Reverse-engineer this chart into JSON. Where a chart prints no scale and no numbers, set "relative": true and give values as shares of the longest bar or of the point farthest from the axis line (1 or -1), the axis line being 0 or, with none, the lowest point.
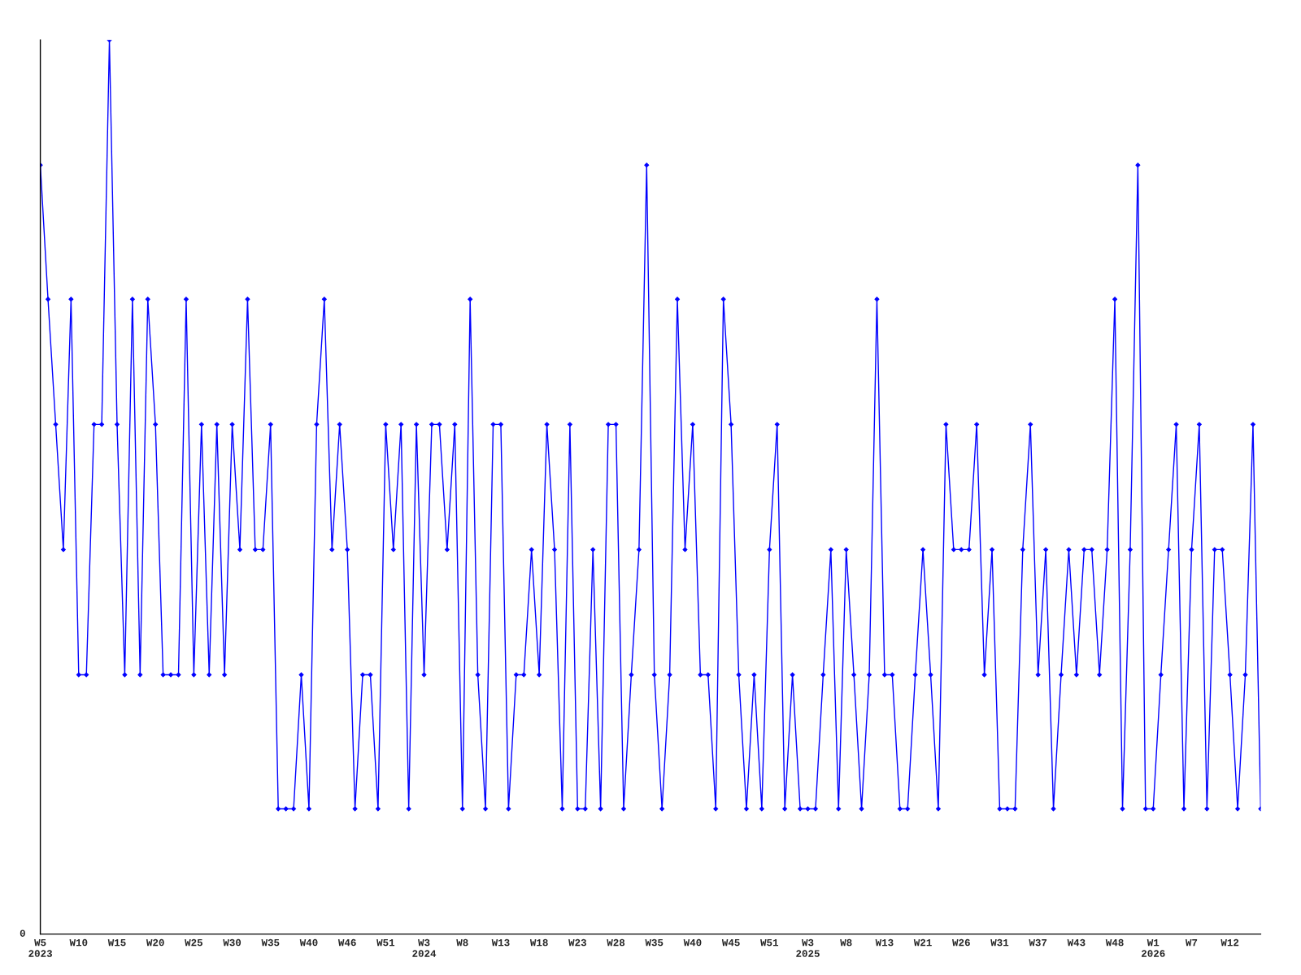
{
  "chart_data": {
    "type": "line",
    "relative": true,
    "categories": [
      "W5\n2023",
      null,
      null,
      null,
      null,
      "W10",
      null,
      null,
      null,
      null,
      "W15",
      null,
      null,
      null,
      null,
      "W20",
      null,
      null,
      null,
      null,
      "W25",
      null,
      null,
      null,
      null,
      "W30",
      null,
      null,
      null,
      null,
      "W35",
      null,
      null,
      null,
      null,
      "W40",
      null,
      null,
      null,
      null,
      "W46",
      null,
      null,
      null,
      null,
      "W51",
      null,
      null,
      null,
      null,
      "W3\n2024",
      null,
      null,
      null,
      null,
      "W8",
      null,
      null,
      null,
      null,
      "W13",
      null,
      null,
      null,
      null,
      "W18",
      null,
      null,
      null,
      null,
      "W23",
      null,
      null,
      null,
      null,
      "W28",
      null,
      null,
      null,
      null,
      "W35",
      null,
      null,
      null,
      null,
      "W40",
      null,
      null,
      null,
      null,
      "W45",
      null,
      null,
      null,
      null,
      "W51",
      null,
      null,
      null,
      null,
      "W3\n2025",
      null,
      null,
      null,
      null,
      "W8",
      null,
      null,
      null,
      null,
      "W13",
      null,
      null,
      null,
      null,
      "W21",
      null,
      null,
      null,
      null,
      "W26",
      null,
      null,
      null,
      null,
      "W31",
      null,
      null,
      null,
      null,
      "W37",
      null,
      null,
      null,
      null,
      "W43",
      null,
      null,
      null,
      null,
      "W48",
      null,
      null,
      null,
      null,
      "W1\n2026",
      null,
      null,
      null,
      null,
      "W7",
      null,
      null,
      null,
      null,
      "W12",
      null,
      null,
      null,
      null
    ],
    "series": [
      {
        "color": "#0000ff",
        "values": [
          0.86,
          0.71,
          0.57,
          0.43,
          0.71,
          0.29,
          0.29,
          0.57,
          0.57,
          1,
          0.57,
          0.29,
          0.71,
          0.29,
          0.71,
          0.57,
          0.29,
          0.29,
          0.29,
          0.71,
          0.29,
          0.57,
          0.29,
          0.57,
          0.29,
          0.57,
          0.43,
          0.71,
          0.43,
          0.43,
          0.57,
          0.14,
          0.14,
          0.14,
          0.29,
          0.14,
          0.57,
          0.71,
          0.43,
          0.57,
          0.43,
          0.14,
          0.29,
          0.29,
          0.14,
          0.57,
          0.43,
          0.57,
          0.14,
          0.57,
          0.29,
          0.57,
          0.57,
          0.43,
          0.57,
          0.14,
          0.71,
          0.29,
          0.14,
          0.57,
          0.57,
          0.14,
          0.29,
          0.29,
          0.43,
          0.29,
          0.57,
          0.43,
          0.14,
          0.57,
          0.14,
          0.14,
          0.43,
          0.14,
          0.57,
          0.57,
          0.14,
          0.29,
          0.43,
          0.86,
          0.29,
          0.14,
          0.29,
          0.71,
          0.43,
          0.57,
          0.29,
          0.29,
          0.14,
          0.71,
          0.57,
          0.29,
          0.14,
          0.29,
          0.14,
          0.43,
          0.57,
          0.14,
          0.29,
          0.14,
          0.14,
          0.14,
          0.29,
          0.43,
          0.14,
          0.43,
          0.29,
          0.14,
          0.29,
          0.71,
          0.29,
          0.29,
          0.14,
          0.14,
          0.29,
          0.43,
          0.29,
          0.14,
          0.57,
          0.43,
          0.43,
          0.43,
          0.57,
          0.29,
          0.43,
          0.14,
          0.14,
          0.14,
          0.43,
          0.57,
          0.29,
          0.43,
          0.14,
          0.29,
          0.43,
          0.29,
          0.43,
          0.43,
          0.29,
          0.43,
          0.71,
          0.14,
          0.43,
          0.86,
          0.14,
          0.14,
          0.29,
          0.43,
          0.57,
          0.14,
          0.43,
          0.57,
          0.14,
          0.43,
          0.43,
          0.29,
          0.14,
          0.29,
          0.57,
          0.14
        ]
      }
    ],
    "annotations": [
      "0"
    ],
    "marker": "diamond",
    "line_style": "solid",
    "grid": false
  }
}
